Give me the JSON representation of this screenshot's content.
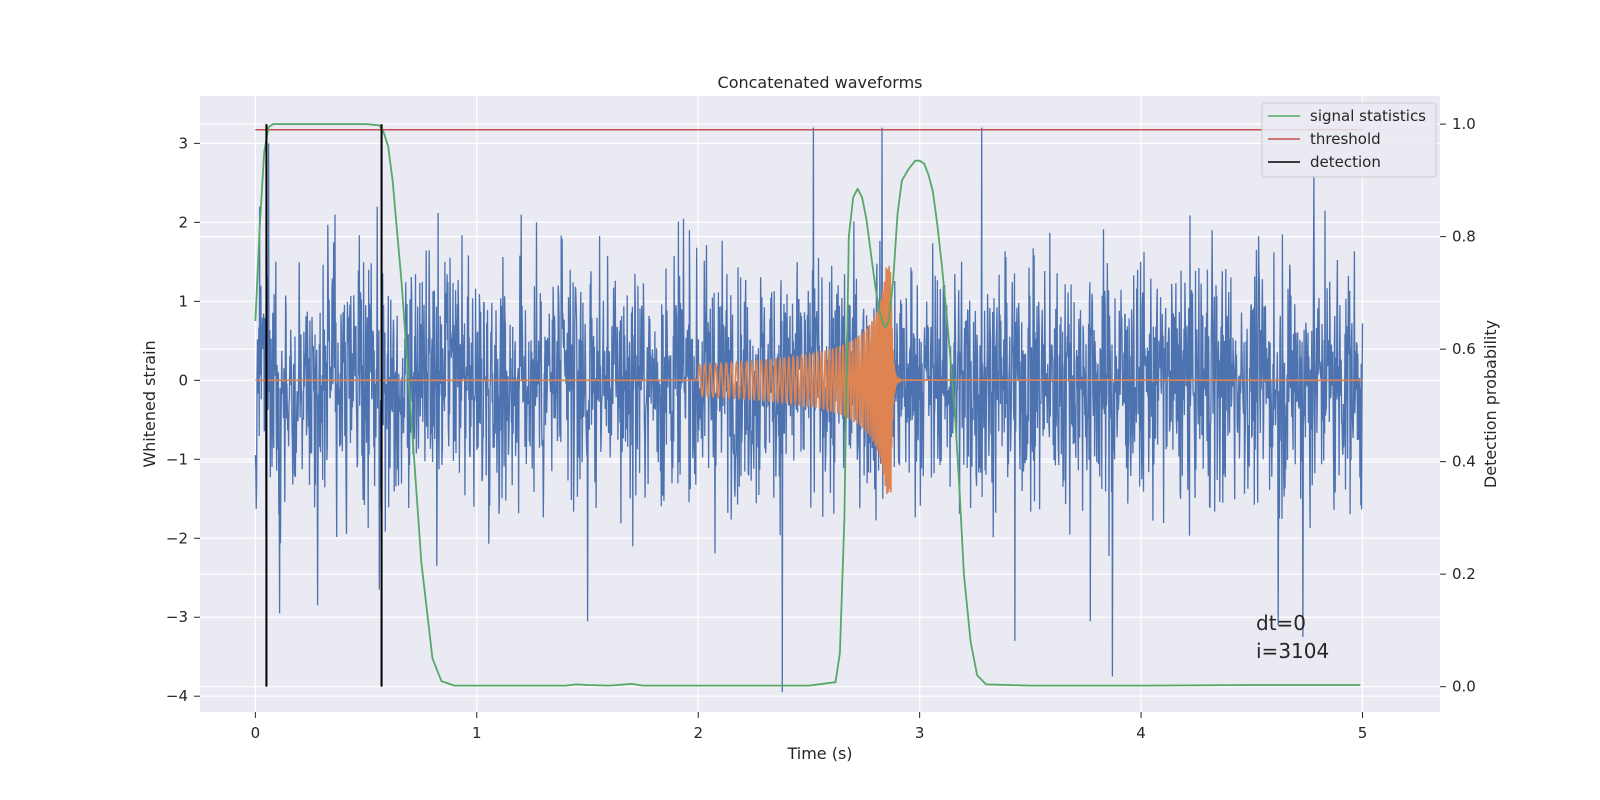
{
  "chart_data": {
    "type": "line",
    "title": "Concatenated waveforms",
    "xlabel": "Time (s)",
    "ylabel": "Whitened strain",
    "y2label": "Detection probability",
    "xlim": [
      -0.25,
      5.35
    ],
    "ylim": [
      -4.2,
      3.6
    ],
    "y2lim": [
      -0.045,
      1.05
    ],
    "x_ticks": [
      0,
      1,
      2,
      3,
      4,
      5
    ],
    "y_ticks": [
      -4,
      -3,
      -2,
      -1,
      0,
      1,
      2,
      3
    ],
    "y2_ticks": [
      0.0,
      0.2,
      0.4,
      0.6,
      0.8,
      1.0
    ],
    "x_tick_labels": [
      "0",
      "1",
      "2",
      "3",
      "4",
      "5"
    ],
    "y_tick_labels": [
      "−4",
      "−3",
      "−2",
      "−1",
      "0",
      "1",
      "2",
      "3"
    ],
    "y2_tick_labels": [
      "0.0",
      "0.2",
      "0.4",
      "0.6",
      "0.8",
      "1.0"
    ],
    "grid": true,
    "legend_placement": "top-right",
    "colors": {
      "strain": "#4c72b0",
      "waveform": "#dd8452",
      "signal_statistics": "#55a868",
      "threshold": "#c44e52",
      "detection": "#000000",
      "background": "#eaeaf2"
    },
    "series": [
      {
        "name": "",
        "axis": "left",
        "kind": "noise",
        "t_range": [
          0,
          5
        ],
        "spikes": [
          {
            "x": 0.02,
            "y": 2.2
          },
          {
            "x": 0.06,
            "y": 3.0
          },
          {
            "x": 0.11,
            "y": -2.95
          },
          {
            "x": 0.28,
            "y": -2.85
          },
          {
            "x": 0.36,
            "y": 2.1
          },
          {
            "x": 0.55,
            "y": 2.2
          },
          {
            "x": 0.56,
            "y": -2.65
          },
          {
            "x": 0.82,
            "y": -2.35
          },
          {
            "x": 1.2,
            "y": 2.1
          },
          {
            "x": 1.27,
            "y": 2.0
          },
          {
            "x": 1.5,
            "y": -3.05
          },
          {
            "x": 1.96,
            "y": 1.9
          },
          {
            "x": 2.38,
            "y": -3.95
          },
          {
            "x": 2.52,
            "y": 3.2
          },
          {
            "x": 2.83,
            "y": 3.2
          },
          {
            "x": 3.28,
            "y": 3.2
          },
          {
            "x": 3.43,
            "y": -3.3
          },
          {
            "x": 3.77,
            "y": -3.05
          },
          {
            "x": 3.87,
            "y": -3.75
          },
          {
            "x": 4.32,
            "y": 1.9
          },
          {
            "x": 4.62,
            "y": -3.1
          },
          {
            "x": 4.73,
            "y": -3.25
          },
          {
            "x": 4.78,
            "y": 2.6
          },
          {
            "x": 4.83,
            "y": 2.15
          }
        ]
      },
      {
        "name": "",
        "axis": "left",
        "kind": "chirp",
        "start": 2.0,
        "merger": 2.87,
        "ringdown_end": 2.92,
        "start_amplitude": 0.2,
        "peak_amplitude": 1.45
      },
      {
        "name": "signal statistics",
        "axis": "right",
        "x": [
          0.0,
          0.02,
          0.04,
          0.06,
          0.08,
          0.12,
          0.2,
          0.5,
          0.56,
          0.58,
          0.6,
          0.62,
          0.66,
          0.7,
          0.75,
          0.8,
          0.84,
          0.9,
          1.0,
          1.4,
          1.45,
          1.5,
          1.6,
          1.7,
          1.75,
          2.0,
          2.5,
          2.62,
          2.64,
          2.66,
          2.68,
          2.7,
          2.72,
          2.74,
          2.76,
          2.78,
          2.8,
          2.82,
          2.84,
          2.85,
          2.86,
          2.88,
          2.9,
          2.92,
          2.95,
          2.98,
          3.0,
          3.02,
          3.04,
          3.06,
          3.08,
          3.1,
          3.12,
          3.14,
          3.16,
          3.18,
          3.2,
          3.23,
          3.26,
          3.3,
          3.5,
          3.8,
          4.0,
          4.5,
          4.99
        ],
        "y": [
          0.65,
          0.82,
          0.95,
          0.995,
          1.0,
          1.0,
          1.0,
          1.0,
          0.998,
          0.985,
          0.96,
          0.9,
          0.72,
          0.5,
          0.22,
          0.05,
          0.01,
          0.002,
          0.002,
          0.002,
          0.004,
          0.003,
          0.002,
          0.005,
          0.002,
          0.002,
          0.002,
          0.008,
          0.06,
          0.3,
          0.8,
          0.87,
          0.885,
          0.87,
          0.83,
          0.77,
          0.71,
          0.665,
          0.64,
          0.64,
          0.65,
          0.72,
          0.84,
          0.9,
          0.92,
          0.935,
          0.935,
          0.93,
          0.91,
          0.88,
          0.82,
          0.75,
          0.67,
          0.58,
          0.48,
          0.35,
          0.2,
          0.08,
          0.02,
          0.004,
          0.002,
          0.002,
          0.002,
          0.003,
          0.003
        ]
      },
      {
        "name": "threshold",
        "axis": "right",
        "x": [
          0,
          5
        ],
        "y": [
          0.99,
          0.99
        ]
      },
      {
        "name": "detection",
        "axis": "right",
        "kind": "vlines",
        "x": [
          0.05,
          0.57
        ],
        "ymin": 0.0,
        "ymax": 1.0
      }
    ],
    "annotations": [
      "dt=0",
      "i=3104"
    ]
  }
}
